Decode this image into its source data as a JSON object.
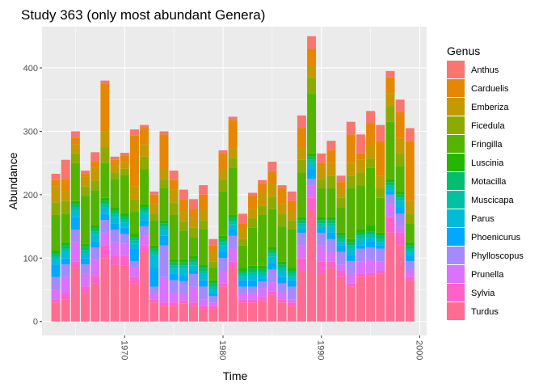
{
  "chart_data": {
    "type": "bar",
    "stacked": true,
    "title": "Study 363 (only most abundant Genera)",
    "xlabel": "Time",
    "ylabel": "Abundance",
    "xlim": [
      1961.6,
      2000.7
    ],
    "ylim": [
      -22,
      465
    ],
    "x_ticks": [
      1970,
      1980,
      1990,
      2000
    ],
    "y_ticks": [
      0,
      100,
      200,
      300,
      400
    ],
    "grid": true,
    "legend_title": "Genus",
    "legend_position": "right",
    "panel_background": "#ebebeb",
    "grid_color": "#ffffff",
    "x": [
      1963,
      1964,
      1965,
      1966,
      1967,
      1968,
      1969,
      1970,
      1971,
      1972,
      1973,
      1974,
      1975,
      1976,
      1977,
      1978,
      1979,
      1980,
      1981,
      1982,
      1983,
      1984,
      1985,
      1986,
      1987,
      1988,
      1989,
      1990,
      1991,
      1992,
      1993,
      1994,
      1995,
      1996,
      1997,
      1998,
      1999
    ],
    "series": [
      {
        "name": "Turdus",
        "color": "#FF6C91",
        "values": [
          30,
          35,
          85,
          45,
          60,
          100,
          90,
          88,
          60,
          110,
          30,
          25,
          25,
          28,
          25,
          20,
          20,
          55,
          85,
          30,
          30,
          33,
          42,
          30,
          25,
          80,
          175,
          75,
          85,
          70,
          55,
          70,
          72,
          75,
          140,
          120,
          65
        ]
      },
      {
        "name": "Sylvia",
        "color": "#FF61C9",
        "values": [
          5,
          10,
          10,
          10,
          12,
          20,
          15,
          15,
          10,
          10,
          5,
          5,
          5,
          5,
          5,
          5,
          5,
          5,
          10,
          5,
          5,
          5,
          5,
          5,
          5,
          20,
          20,
          20,
          10,
          10,
          5,
          5,
          5,
          5,
          25,
          20,
          5
        ]
      },
      {
        "name": "Prunella",
        "color": "#DB72FB",
        "values": [
          15,
          25,
          30,
          20,
          25,
          20,
          20,
          20,
          15,
          15,
          10,
          40,
          15,
          10,
          25,
          10,
          5,
          20,
          20,
          10,
          10,
          15,
          15,
          10,
          5,
          20,
          20,
          25,
          15,
          10,
          15,
          20,
          20,
          15,
          20,
          10,
          10
        ]
      },
      {
        "name": "Phylloscopus",
        "color": "#A58AFF",
        "values": [
          20,
          20,
          20,
          15,
          20,
          20,
          20,
          15,
          10,
          15,
          10,
          50,
          20,
          20,
          20,
          20,
          10,
          20,
          20,
          10,
          10,
          10,
          20,
          15,
          20,
          20,
          10,
          20,
          20,
          20,
          20,
          20,
          20,
          20,
          15,
          20,
          15
        ]
      },
      {
        "name": "Phoenicurus",
        "color": "#00A9FF",
        "values": [
          20,
          10,
          20,
          10,
          10,
          10,
          10,
          10,
          20,
          10,
          30,
          15,
          10,
          10,
          5,
          10,
          5,
          10,
          10,
          10,
          10,
          5,
          10,
          10,
          10,
          5,
          15,
          5,
          10,
          10,
          10,
          5,
          10,
          5,
          5,
          10,
          10
        ]
      },
      {
        "name": "Parus",
        "color": "#00BCD8",
        "values": [
          8,
          10,
          10,
          8,
          10,
          10,
          10,
          8,
          8,
          10,
          20,
          10,
          8,
          10,
          8,
          10,
          5,
          10,
          8,
          5,
          8,
          5,
          10,
          10,
          5,
          5,
          10,
          5,
          10,
          5,
          10,
          10,
          5,
          5,
          5,
          10,
          5
        ]
      },
      {
        "name": "Muscicapa",
        "color": "#00C1A3",
        "values": [
          5,
          5,
          5,
          5,
          5,
          5,
          5,
          5,
          5,
          5,
          5,
          5,
          5,
          5,
          5,
          5,
          5,
          5,
          5,
          5,
          5,
          5,
          5,
          5,
          5,
          5,
          5,
          5,
          5,
          5,
          5,
          5,
          5,
          5,
          5,
          5,
          5
        ]
      },
      {
        "name": "Motacilla",
        "color": "#00BE70",
        "values": [
          5,
          5,
          5,
          5,
          5,
          5,
          5,
          5,
          5,
          5,
          5,
          5,
          5,
          5,
          5,
          5,
          5,
          5,
          5,
          5,
          5,
          5,
          5,
          5,
          5,
          5,
          5,
          5,
          5,
          5,
          5,
          5,
          5,
          5,
          5,
          5,
          5
        ]
      },
      {
        "name": "Luscinia",
        "color": "#24B700",
        "values": [
          5,
          5,
          5,
          5,
          5,
          5,
          5,
          5,
          5,
          5,
          5,
          5,
          5,
          5,
          5,
          5,
          5,
          5,
          5,
          5,
          5,
          5,
          5,
          5,
          5,
          5,
          5,
          5,
          5,
          5,
          5,
          5,
          10,
          5,
          5,
          5,
          5
        ]
      },
      {
        "name": "Fringilla",
        "color": "#53B400",
        "values": [
          55,
          45,
          60,
          75,
          55,
          55,
          45,
          60,
          35,
          55,
          40,
          50,
          70,
          45,
          30,
          55,
          20,
          70,
          75,
          35,
          60,
          80,
          60,
          55,
          60,
          70,
          95,
          45,
          45,
          40,
          80,
          70,
          90,
          55,
          90,
          40,
          30
        ]
      },
      {
        "name": "Ficedula",
        "color": "#8CAB00",
        "values": [
          20,
          20,
          15,
          15,
          15,
          25,
          10,
          10,
          20,
          20,
          10,
          15,
          20,
          15,
          15,
          15,
          10,
          20,
          15,
          10,
          15,
          15,
          20,
          20,
          15,
          20,
          25,
          15,
          20,
          15,
          20,
          20,
          15,
          15,
          25,
          20,
          15
        ]
      },
      {
        "name": "Emberiza",
        "color": "#C49A00",
        "values": [
          25,
          15,
          15,
          15,
          20,
          25,
          10,
          10,
          20,
          20,
          15,
          15,
          20,
          15,
          15,
          15,
          15,
          15,
          15,
          15,
          15,
          20,
          20,
          15,
          15,
          20,
          20,
          20,
          20,
          15,
          20,
          20,
          20,
          20,
          20,
          25,
          20
        ]
      },
      {
        "name": "Carduelis",
        "color": "#E58700",
        "values": [
          10,
          20,
          10,
          5,
          10,
          75,
          10,
          10,
          80,
          25,
          15,
          55,
          15,
          20,
          15,
          25,
          10,
          25,
          45,
          10,
          20,
          15,
          20,
          25,
          15,
          30,
          25,
          5,
          20,
          10,
          45,
          10,
          35,
          55,
          25,
          40,
          95
        ]
      },
      {
        "name": "Anthus",
        "color": "#F8766D",
        "values": [
          10,
          30,
          10,
          5,
          15,
          5,
          5,
          5,
          10,
          5,
          5,
          5,
          15,
          15,
          15,
          15,
          10,
          5,
          5,
          15,
          5,
          5,
          15,
          5,
          15,
          20,
          20,
          15,
          15,
          10,
          20,
          30,
          20,
          25,
          10,
          20,
          20
        ]
      }
    ]
  }
}
